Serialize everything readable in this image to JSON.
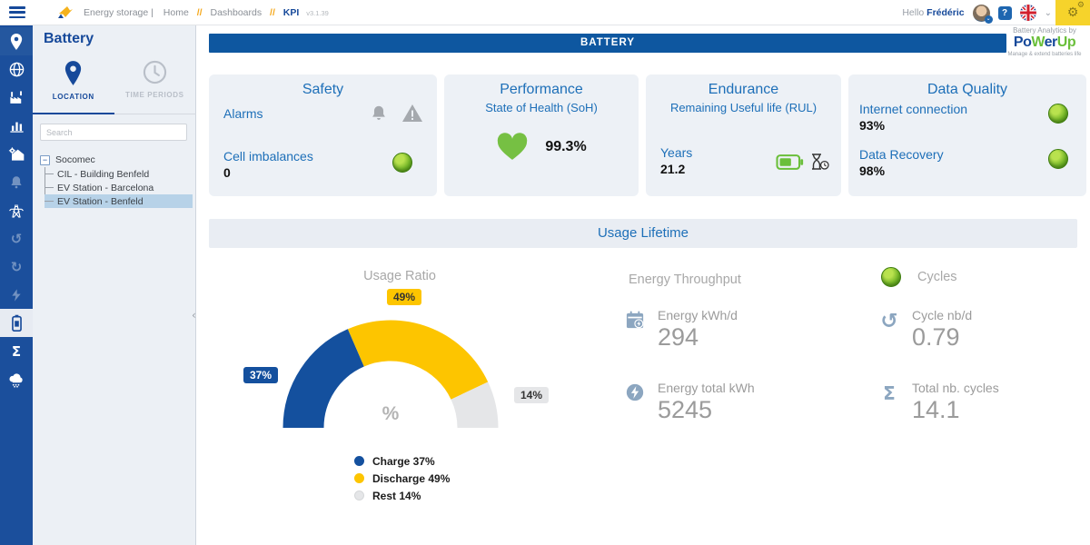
{
  "topbar": {
    "breadcrumb": {
      "app": "Energy storage |",
      "home": "Home",
      "sep": "//",
      "dashboards": "Dashboards",
      "current": "KPI",
      "version": "v3.1.39"
    },
    "greeting": "Hello",
    "user": "Frédéric",
    "help_label": "?"
  },
  "icons": {
    "gear_big": "⚙",
    "gear_small": "⚙",
    "chevron_down": "⌄",
    "avatar_chevron": "⌄",
    "history": "↺",
    "sigma": "Σ",
    "rail_sigma": "Σ",
    "collapse": "‹",
    "tree_collapse": "−"
  },
  "sidebar": {
    "title": "Battery",
    "tabs": [
      {
        "label": "LOCATION"
      },
      {
        "label": "TIME PERIODS"
      }
    ],
    "search_placeholder": "Search",
    "tree": {
      "root": "Socomec",
      "children": [
        "CIL - Building Benfeld",
        "EV Station - Barcelona",
        "EV Station - Benfeld"
      ],
      "selected": "EV Station - Benfeld"
    }
  },
  "main": {
    "header": "BATTERY",
    "brand": {
      "tagline_top": "Battery Analytics by",
      "po": "Po",
      "w": "W",
      "er": "er",
      "up": "Up",
      "tagline_bottom": "Manage & extend batteries life"
    },
    "cards": {
      "safety": {
        "title": "Safety",
        "alarms_label": "Alarms",
        "cell_label": "Cell imbalances",
        "cell_value": "0"
      },
      "performance": {
        "title": "Performance",
        "subtitle": "State of Health (SoH)",
        "soh_value": "99.3%"
      },
      "endurance": {
        "title": "Endurance",
        "subtitle": "Remaining Useful life (RUL)",
        "years_label": "Years",
        "years_value": "21.2"
      },
      "data_quality": {
        "title": "Data Quality",
        "internet_label": "Internet connection",
        "internet_value": "93%",
        "recovery_label": "Data Recovery",
        "recovery_value": "98%"
      }
    },
    "usage_section_title": "Usage Lifetime",
    "throughput": {
      "title": "Energy Throughput",
      "items": [
        {
          "label": "Energy kWh/d",
          "value": "294"
        },
        {
          "label": "Energy total kWh",
          "value": "5245"
        }
      ]
    },
    "cycles": {
      "title": "Cycles",
      "items": [
        {
          "label": "Cycle nb/d",
          "value": "0.79"
        },
        {
          "label": "Total nb. cycles",
          "value": "14.1"
        }
      ]
    }
  },
  "chart_data": {
    "type": "pie",
    "variant": "half-donut-gauge",
    "title": "Usage Ratio",
    "center_label": "%",
    "legend_position": "bottom",
    "segments": [
      {
        "name": "Charge",
        "value": 37,
        "color": "#14509E",
        "badge": "37%",
        "badge_text": "#ffffff",
        "legend": "Charge 37%"
      },
      {
        "name": "Discharge",
        "value": 49,
        "color": "#FDC500",
        "badge": "49%",
        "badge_text": "#333333",
        "legend": "Discharge 49%"
      },
      {
        "name": "Rest",
        "value": 14,
        "color": "#E5E6E8",
        "badge": "14%",
        "badge_text": "#333333",
        "legend": "Rest 14%"
      }
    ]
  },
  "colors": {
    "brand_blue": "#16499a",
    "bar_blue": "#0e57a0",
    "card_blue_text": "#1d6fb8",
    "accent_yellow": "#f6d32b",
    "green": "#6abf3a",
    "card_bg": "#edf1f6"
  }
}
